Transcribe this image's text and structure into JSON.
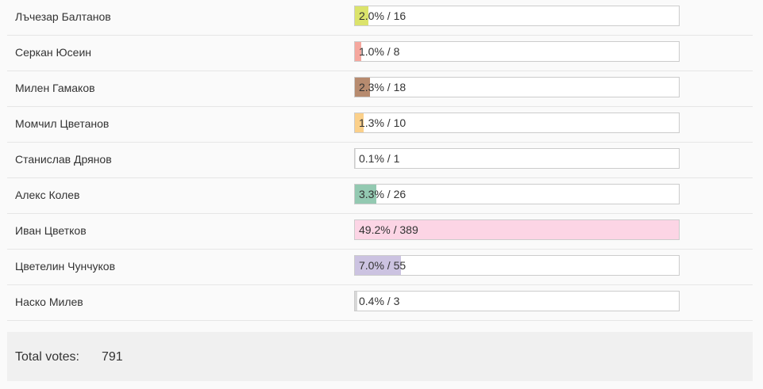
{
  "poll": {
    "rows": [
      {
        "name": "Лъчезар Балтанов",
        "result": "2.0% / 16",
        "percent": 2.0,
        "color": "#dbe36b"
      },
      {
        "name": "Серкан Юсеин",
        "result": "1.0% / 8",
        "percent": 1.0,
        "color": "#f5a79e"
      },
      {
        "name": "Милен Гамаков",
        "result": "2.3% / 18",
        "percent": 2.3,
        "color": "#b78b6f"
      },
      {
        "name": "Момчил Цветанов",
        "result": "1.3% / 10",
        "percent": 1.3,
        "color": "#fbd08a"
      },
      {
        "name": "Станислав Дрянов",
        "result": "0.1% / 1",
        "percent": 0.1,
        "color": "#e0e0e0"
      },
      {
        "name": "Алекс Колев",
        "result": "3.3% / 26",
        "percent": 3.3,
        "color": "#93c9b1"
      },
      {
        "name": "Иван Цветков",
        "result": "49.2% / 389",
        "percent": 49.2,
        "color": "#fcd5e5"
      },
      {
        "name": "Цветелин Чунчуков",
        "result": "7.0% / 55",
        "percent": 7.0,
        "color": "#ccc3e1"
      },
      {
        "name": "Наско Милев",
        "result": "0.4% / 3",
        "percent": 0.4,
        "color": "#d8d8d8"
      }
    ],
    "total_label": "Total votes:",
    "total": "791"
  }
}
